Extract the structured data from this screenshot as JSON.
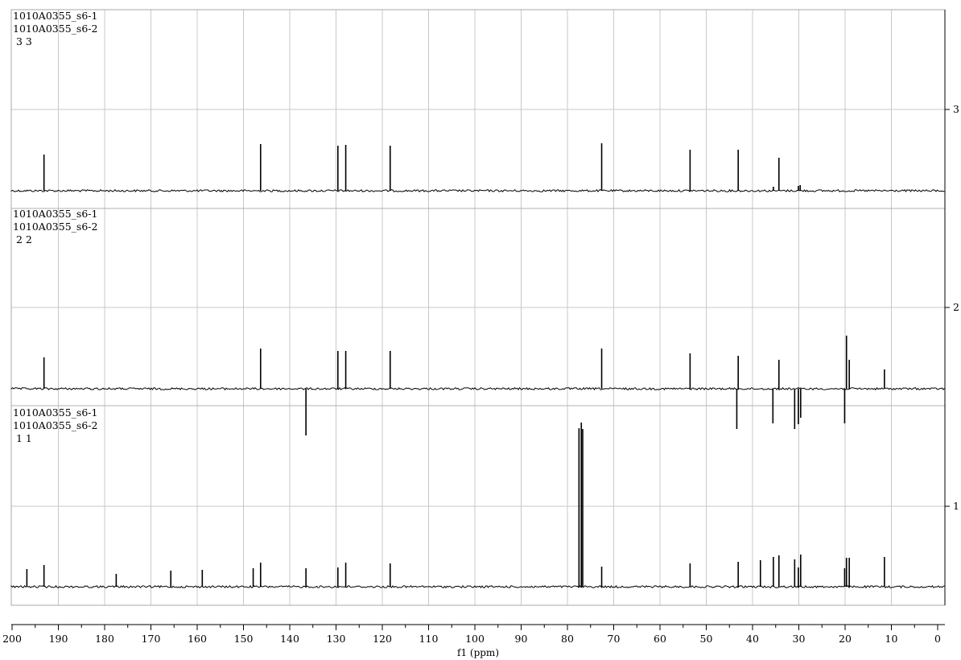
{
  "chart_data": {
    "type": "line",
    "title": "",
    "xlabel": "f1 (ppm)",
    "ylabel": "",
    "x_reversed": true,
    "xlim": [
      200,
      0
    ],
    "x_ticks": [
      200,
      190,
      180,
      170,
      160,
      150,
      140,
      130,
      120,
      110,
      100,
      90,
      80,
      70,
      60,
      50,
      40,
      30,
      20,
      10,
      0
    ],
    "y_ticks": [
      "1",
      "2",
      "3"
    ],
    "grid": true,
    "stacked": true,
    "line_color": "#000000",
    "grid_color": "#c8c8c8",
    "traces": [
      {
        "index": 3,
        "labels": [
          "1010A0355_s6-1",
          "1010A0355_s6-2",
          " 3 3"
        ],
        "peaks": [
          {
            "ppm": 193.1,
            "height": 45
          },
          {
            "ppm": 146.3,
            "height": 58
          },
          {
            "ppm": 129.6,
            "height": 56
          },
          {
            "ppm": 127.9,
            "height": 57
          },
          {
            "ppm": 118.3,
            "height": 56
          },
          {
            "ppm": 72.6,
            "height": 59
          },
          {
            "ppm": 53.5,
            "height": 51
          },
          {
            "ppm": 43.1,
            "height": 51
          },
          {
            "ppm": 34.3,
            "height": 41
          },
          {
            "ppm": 35.5,
            "height": 5
          },
          {
            "ppm": 30.1,
            "height": 6
          },
          {
            "ppm": 29.7,
            "height": 7
          }
        ]
      },
      {
        "index": 2,
        "labels": [
          "1010A0355_s6-1",
          "1010A0355_s6-2",
          " 2 2"
        ],
        "peaks": [
          {
            "ppm": 193.1,
            "height": 39
          },
          {
            "ppm": 146.3,
            "height": 50
          },
          {
            "ppm": 136.5,
            "height": -58
          },
          {
            "ppm": 129.6,
            "height": 47
          },
          {
            "ppm": 127.9,
            "height": 47
          },
          {
            "ppm": 118.3,
            "height": 47
          },
          {
            "ppm": 72.6,
            "height": 50
          },
          {
            "ppm": 53.5,
            "height": 44
          },
          {
            "ppm": 43.4,
            "height": -50
          },
          {
            "ppm": 43.1,
            "height": 41
          },
          {
            "ppm": 35.6,
            "height": -43
          },
          {
            "ppm": 34.3,
            "height": 36
          },
          {
            "ppm": 30.9,
            "height": -50
          },
          {
            "ppm": 30.1,
            "height": -44
          },
          {
            "ppm": 29.6,
            "height": -36
          },
          {
            "ppm": 20.1,
            "height": -43
          },
          {
            "ppm": 19.7,
            "height": 66
          },
          {
            "ppm": 19.1,
            "height": 36
          },
          {
            "ppm": 11.5,
            "height": 24
          }
        ]
      },
      {
        "index": 1,
        "labels": [
          "1010A0355_s6-1",
          "1010A0355_s6-2",
          " 1 1"
        ],
        "peaks": [
          {
            "ppm": 196.8,
            "height": 22
          },
          {
            "ppm": 193.1,
            "height": 27
          },
          {
            "ppm": 177.5,
            "height": 16
          },
          {
            "ppm": 165.7,
            "height": 20
          },
          {
            "ppm": 158.9,
            "height": 21
          },
          {
            "ppm": 147.9,
            "height": 23
          },
          {
            "ppm": 146.3,
            "height": 30
          },
          {
            "ppm": 136.5,
            "height": 23
          },
          {
            "ppm": 129.6,
            "height": 24
          },
          {
            "ppm": 127.9,
            "height": 30
          },
          {
            "ppm": 118.3,
            "height": 29
          },
          {
            "ppm": 77.5,
            "height": 197
          },
          {
            "ppm": 77.0,
            "height": 204
          },
          {
            "ppm": 76.7,
            "height": 196
          },
          {
            "ppm": 72.6,
            "height": 25
          },
          {
            "ppm": 53.5,
            "height": 29
          },
          {
            "ppm": 43.1,
            "height": 31
          },
          {
            "ppm": 38.3,
            "height": 33
          },
          {
            "ppm": 35.5,
            "height": 37
          },
          {
            "ppm": 34.3,
            "height": 39
          },
          {
            "ppm": 30.9,
            "height": 34
          },
          {
            "ppm": 30.1,
            "height": 24
          },
          {
            "ppm": 29.6,
            "height": 40
          },
          {
            "ppm": 20.1,
            "height": 23
          },
          {
            "ppm": 19.7,
            "height": 36
          },
          {
            "ppm": 19.1,
            "height": 36
          },
          {
            "ppm": 11.5,
            "height": 37
          }
        ]
      }
    ]
  }
}
